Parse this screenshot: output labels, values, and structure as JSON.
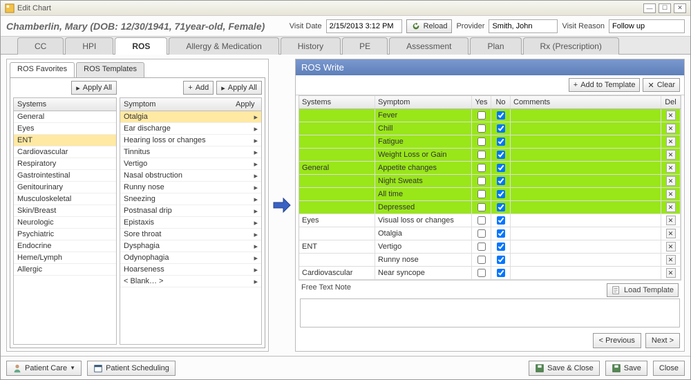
{
  "window": {
    "title": "Edit Chart"
  },
  "patient": {
    "display": "Chamberlin, Mary (DOB: 12/30/1941, 71year-old, Female)"
  },
  "visit": {
    "date_label": "Visit Date",
    "date_value": "2/15/2013 3:12 PM",
    "reload_label": "Reload",
    "provider_label": "Provider",
    "provider_value": "Smith, John",
    "reason_label": "Visit Reason",
    "reason_value": "Follow up"
  },
  "tabs": [
    "CC",
    "HPI",
    "ROS",
    "Allergy & Medication",
    "History",
    "PE",
    "Assessment",
    "Plan",
    "Rx (Prescription)"
  ],
  "active_tab": 2,
  "subtabs": [
    "ROS Favorites",
    "ROS Templates"
  ],
  "active_subtab": 0,
  "toolbar": {
    "apply_all": "Apply All",
    "add": "Add"
  },
  "systems_header": "Systems",
  "systems": [
    "General",
    "Eyes",
    "ENT",
    "Cardiovascular",
    "Respiratory",
    "Gastrointestinal",
    "Genitourinary",
    "Musculoskeletal",
    "Skin/Breast",
    "Neurologic",
    "Psychiatric",
    "Endocrine",
    "Heme/Lymph",
    "Allergic"
  ],
  "systems_selected": 2,
  "symptom_header": "Symptom",
  "apply_header": "Apply",
  "symptoms": [
    "Otalgia",
    "Ear discharge",
    "Hearing loss or changes",
    "Tinnitus",
    "Vertigo",
    "Nasal obstruction",
    "Runny nose",
    "Sneezing",
    "Postnasal drip",
    "Epistaxis",
    "Sore throat",
    "Dysphagia",
    "Odynophagia",
    "Hoarseness",
    "< Blank… >"
  ],
  "symptoms_selected": 0,
  "ros_write": {
    "title": "ROS Write",
    "add_to_template": "Add to Template",
    "clear": "Clear",
    "col_systems": "Systems",
    "col_symptom": "Symptom",
    "col_yes": "Yes",
    "col_no": "No",
    "col_comments": "Comments",
    "col_del": "Del",
    "rows": [
      {
        "system": "",
        "symptom": "Fever",
        "yes": false,
        "no": true,
        "green": true
      },
      {
        "system": "",
        "symptom": "Chill",
        "yes": false,
        "no": true,
        "green": true
      },
      {
        "system": "",
        "symptom": "Fatigue",
        "yes": false,
        "no": true,
        "green": true
      },
      {
        "system": "",
        "symptom": "Weight Loss or Gain",
        "yes": false,
        "no": true,
        "green": true
      },
      {
        "system": "General",
        "symptom": "Appetite changes",
        "yes": false,
        "no": true,
        "green": true
      },
      {
        "system": "",
        "symptom": "Night Sweats",
        "yes": false,
        "no": true,
        "green": true
      },
      {
        "system": "",
        "symptom": "All time",
        "yes": false,
        "no": true,
        "green": true
      },
      {
        "system": "",
        "symptom": "Depressed",
        "yes": false,
        "no": true,
        "green": true
      },
      {
        "system": "Eyes",
        "symptom": "Visual loss or changes",
        "yes": false,
        "no": true,
        "green": false
      },
      {
        "system": "",
        "symptom": "Otalgia",
        "yes": false,
        "no": true,
        "green": false
      },
      {
        "system": "ENT",
        "symptom": "Vertigo",
        "yes": false,
        "no": true,
        "green": false
      },
      {
        "system": "",
        "symptom": "Runny nose",
        "yes": false,
        "no": true,
        "green": false
      },
      {
        "system": "Cardiovascular",
        "symptom": "Near syncope",
        "yes": false,
        "no": true,
        "green": false
      }
    ],
    "free_label": "Free Text Note",
    "load_template": "Load Template",
    "previous": "< Previous",
    "next": "Next >"
  },
  "footer": {
    "patient_care": "Patient Care",
    "patient_scheduling": "Patient Scheduling",
    "save_close": "Save & Close",
    "save": "Save",
    "close": "Close"
  },
  "colors": {
    "highlight_green": "#99e619",
    "highlight_yellow": "#ffe9a3",
    "header_blue": "#6a8bc4"
  }
}
